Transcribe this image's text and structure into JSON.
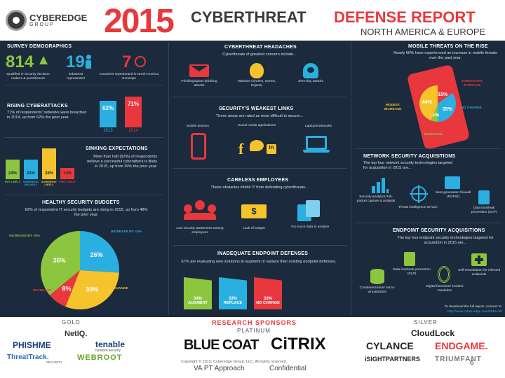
{
  "header": {
    "brand": "CYBEREDGE",
    "brand_sub": "GROUP",
    "year": "2015",
    "title_part1": "CYBERTHREAT",
    "title_part2": "DEFENSE REPORT",
    "subtitle": "NORTH AMERICA & EUROPE"
  },
  "survey": {
    "title": "SURVEY DEMOGRAPHICS",
    "stats": [
      {
        "value": "814",
        "label": "Qualified IT security decision makers & practitioners"
      },
      {
        "value": "19",
        "label": "Industries represented"
      },
      {
        "value": "7",
        "label": "Countries represented in North America & Europe"
      }
    ]
  },
  "rising": {
    "title": "RISING CYBERATTACKS",
    "text": "71% of respondents' networks were breached in 2014, up from 62% the prior year.",
    "bars": [
      {
        "value": "62%",
        "year": "2013",
        "fraction": 0.62,
        "color": "#2ab0e0"
      },
      {
        "value": "71%",
        "year": "2014",
        "fraction": 0.71,
        "color": "#e8383d"
      }
    ]
  },
  "sinking": {
    "title": "SINKING EXPECTATIONS",
    "text": "More than half (52%) of respondents believe a successful cyberattack is likely in 2015, up from 39% the prior year.",
    "bars": [
      {
        "value": "24%",
        "label": "NOT LIKELY",
        "fraction": 0.24,
        "color": "#8cc63f"
      },
      {
        "value": "24%",
        "label": "SOMEWHAT UNLIKELY",
        "fraction": 0.24,
        "color": "#2ab0e0"
      },
      {
        "value": "38%",
        "label": "SOMEWHAT LIKELY",
        "fraction": 0.38,
        "color": "#f5c42c"
      },
      {
        "value": "14%",
        "label": "VERY LIKELY",
        "fraction": 0.14,
        "color": "#e8383d"
      }
    ]
  },
  "budgets": {
    "title": "HEALTHY SECURITY BUDGETS",
    "text": "62% of respondent IT security budgets are rising in 2015, up from 48% the prior year.",
    "slices": [
      {
        "label": "INCREASE BY >5%",
        "value": "36%",
        "fraction": 0.36,
        "color": "#8cc63f"
      },
      {
        "label": "INCREASE BY <5%",
        "value": "26%",
        "fraction": 0.26,
        "color": "#2ab0e0"
      },
      {
        "label": "NO CHANGE",
        "value": "30%",
        "fraction": 0.3,
        "color": "#f5c42c"
      },
      {
        "label": "DECREASE",
        "value": "8%",
        "fraction": 0.08,
        "color": "#e8383d"
      }
    ]
  },
  "headaches": {
    "title": "CYBERTHREAT HEADACHES",
    "text": "Cyberthreats of greatest concern include...",
    "items": [
      {
        "label": "Phishing/spear-phishing attacks",
        "icon": "fishhook-envelope-icon"
      },
      {
        "label": "Malware (viruses, worms, trojans)",
        "icon": "bug-icon"
      },
      {
        "label": "Zero-day attacks",
        "icon": "hooded-hacker-icon"
      }
    ]
  },
  "weakest": {
    "title": "SECURITY'S WEAKEST LINKS",
    "text": "These areas are rated as most difficult to secure...",
    "items": [
      {
        "label": "Mobile devices",
        "icon": "phone-icon"
      },
      {
        "label": "Social media applications",
        "icon": "social-media-icon"
      },
      {
        "label": "Laptop/notebooks",
        "icon": "laptop-icon"
      }
    ]
  },
  "careless": {
    "title": "CARELESS EMPLOYEES",
    "text": "These obstacles inhibit IT from defending cyberthreats...",
    "items": [
      {
        "label": "Low security awareness among employees",
        "icon": "people-icon"
      },
      {
        "label": "Lack of budget",
        "icon": "dollar-bill-icon"
      },
      {
        "label": "Too much data to analyze",
        "icon": "documents-icon"
      }
    ]
  },
  "endpoint_def": {
    "title": "INADEQUATE ENDPOINT DEFENSES",
    "text": "67% are evaluating new solutions to augment or replace their existing endpoint defenses.",
    "bars": [
      {
        "value": "34%",
        "label": "AUGMENT",
        "color": "#8cc63f"
      },
      {
        "value": "33%",
        "label": "REPLACE",
        "color": "#2ab0e0"
      },
      {
        "value": "33%",
        "label": "NO CHANGE",
        "color": "#e8383d"
      }
    ]
  },
  "mobile": {
    "title": "MOBILE THREATS ON THE RISE",
    "text": "Nearly 60% have experienced an increase in mobile threats over the past year.",
    "slices": [
      {
        "label": "SIGNIFICANT INCREASE",
        "value": "15%",
        "color": "#e8383d"
      },
      {
        "label": "MODEST INCREASE",
        "value": "44%",
        "color": "#f5c42c"
      },
      {
        "label": "NO CHANGE",
        "value": "35%",
        "color": "#2ab0e0"
      },
      {
        "label": "DECREASE",
        "value": "6%",
        "color": "#8cc63f"
      }
    ]
  },
  "netsec": {
    "title": "NETWORK SECURITY ACQUISITIONS",
    "text": "The top four network security technologies targeted for acquisition in 2015 are...",
    "items": [
      {
        "label": "Security analytics/ full-packet capture & analysis",
        "icon": "bar-chart-icon"
      },
      {
        "label": "Threat intelligence service",
        "icon": "crosshair-icon"
      },
      {
        "label": "Next-generation firewall (NGFW)",
        "icon": "firewall-icon"
      },
      {
        "label": "Data loss/leak prevention (DLP)",
        "icon": "document-lock-icon"
      }
    ]
  },
  "endsec": {
    "title": "ENDPOINT SECURITY ACQUISITIONS",
    "text": "The top four endpoint security technologies targeted for acquisition in 2015 are...",
    "items": [
      {
        "label": "Containerization/ micro-virtualization",
        "icon": "database-icon"
      },
      {
        "label": "Data loss/leak prevention (DLP)",
        "icon": "document-lock-icon"
      },
      {
        "label": "Digital forensics/ incident resolution",
        "icon": "fingerprint-icon"
      },
      {
        "label": "Self-remediation for infected endpoints",
        "icon": "first-aid-icon"
      }
    ]
  },
  "download": {
    "line1": "To download the full report, connect to:",
    "url": "http://www.cyber-edge.com/2015-cdr"
  },
  "sponsors": {
    "title": "RESEARCH SPONSORS",
    "gold": "GOLD",
    "platinum": "PLATINUM",
    "silver": "SILVER",
    "gold_logos": [
      "NetIQ.",
      "PHISHME",
      "tenable",
      "network security",
      "ThreatTrack.",
      "SECURITY",
      "WEBROOT"
    ],
    "platinum_logos": [
      "BLUE COAT",
      "CiTRIX"
    ],
    "silver_logos": [
      "CloudLock",
      "CYLANCE",
      "ENDGAME.",
      "iSIGHTPARTNERS",
      "TRIUMFANT"
    ],
    "copyright": "Copyright © 2015, Cyberedge Group, LLC. All rights reserved."
  },
  "footer": {
    "left": "VA PT Approach",
    "center": "Confidential",
    "page": "6"
  }
}
